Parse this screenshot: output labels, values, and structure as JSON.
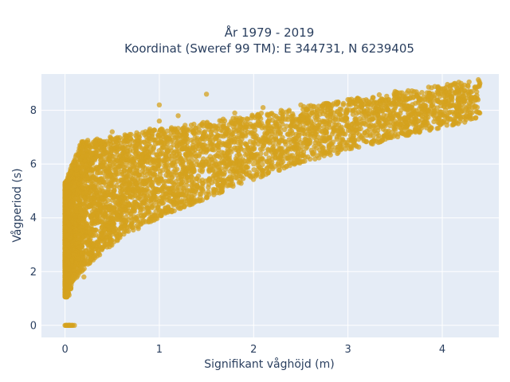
{
  "chart_data": {
    "type": "scatter",
    "title_line1": "År 1979 - 2019",
    "title_line2": "Koordinat (Sweref 99 TM): E 344731, N 6239405",
    "xlabel": "Signifikant våghöjd (m)",
    "ylabel": "Vågperiod (s)",
    "xlim": [
      -0.25,
      4.6
    ],
    "ylim": [
      -0.45,
      9.35
    ],
    "xticks": [
      0,
      1,
      2,
      3,
      4
    ],
    "yticks": [
      0,
      2,
      4,
      6,
      8
    ],
    "grid": true,
    "marker_color": "#d4a11e",
    "plot_background": "#e5ecf6",
    "series": [
      {
        "values": [
          [
            0.0,
            0.0
          ],
          [
            0.05,
            0.0
          ],
          [
            0.1,
            0.0
          ],
          [
            0.03,
            1.2
          ],
          [
            0.05,
            1.5
          ],
          [
            0.08,
            2.2
          ],
          [
            0.1,
            3.5
          ],
          [
            0.1,
            5.3
          ],
          [
            0.15,
            4.5
          ],
          [
            0.2,
            1.8
          ],
          [
            0.25,
            2.5
          ],
          [
            0.3,
            3.0
          ],
          [
            0.3,
            6.2
          ],
          [
            0.4,
            3.3
          ],
          [
            0.4,
            6.8
          ],
          [
            0.5,
            3.6
          ],
          [
            0.5,
            7.2
          ],
          [
            0.6,
            3.8
          ],
          [
            0.7,
            4.0
          ],
          [
            0.7,
            7.1
          ],
          [
            0.8,
            4.2
          ],
          [
            0.9,
            7.3
          ],
          [
            1.0,
            4.5
          ],
          [
            1.0,
            7.6
          ],
          [
            1.0,
            8.2
          ],
          [
            1.2,
            4.9
          ],
          [
            1.2,
            7.8
          ],
          [
            1.4,
            5.2
          ],
          [
            1.5,
            8.6
          ],
          [
            1.6,
            5.5
          ],
          [
            1.8,
            5.8
          ],
          [
            1.8,
            7.9
          ],
          [
            2.0,
            6.0
          ],
          [
            2.1,
            8.1
          ],
          [
            2.3,
            6.4
          ],
          [
            2.5,
            6.8
          ],
          [
            2.5,
            8.2
          ],
          [
            2.8,
            7.0
          ],
          [
            3.0,
            7.4
          ],
          [
            3.0,
            8.4
          ],
          [
            3.2,
            7.6
          ],
          [
            3.5,
            7.8
          ],
          [
            3.5,
            8.7
          ],
          [
            3.7,
            8.0
          ],
          [
            3.9,
            8.2
          ],
          [
            4.0,
            8.8
          ],
          [
            4.1,
            8.5
          ],
          [
            4.2,
            9.0
          ],
          [
            4.4,
            9.0
          ]
        ]
      }
    ]
  }
}
